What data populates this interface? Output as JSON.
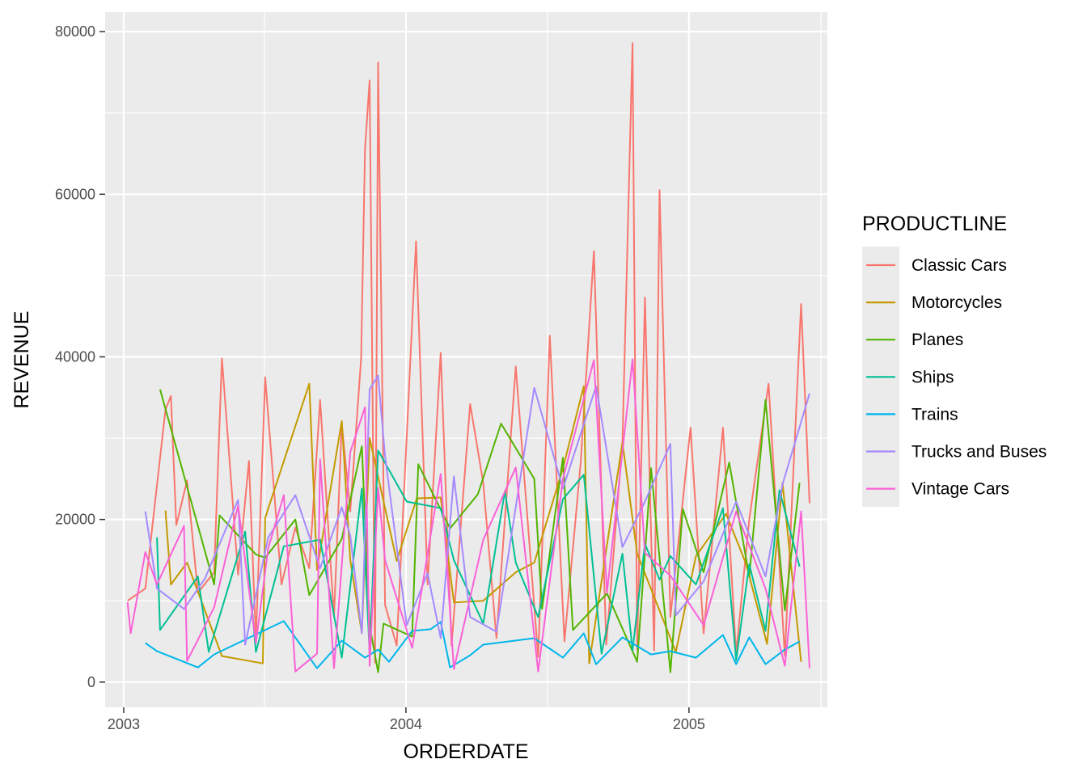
{
  "chart_data": {
    "type": "line",
    "xlabel": "ORDERDATE",
    "ylabel": "REVENUE",
    "x_ticks": [
      "2003",
      "2004",
      "2005"
    ],
    "y_ticks": [
      0,
      20000,
      40000,
      60000,
      80000
    ],
    "x_tick_labels": [
      "2003",
      "2004",
      "2005"
    ],
    "y_tick_labels": [
      "0",
      "20000",
      "40000",
      "60000",
      "80000"
    ],
    "xlim": [
      "2002-12-08",
      "2005-06-29"
    ],
    "ylim": [
      -3100,
      82400
    ],
    "grid": true,
    "legend": {
      "title": "PRODUCTLINE",
      "position": "right"
    },
    "series": [
      {
        "name": "Classic Cars",
        "color": "#F8766D",
        "points": [
          [
            "2003-01-06",
            10000
          ],
          [
            "2003-01-29",
            11500
          ],
          [
            "2003-02-24",
            33500
          ],
          [
            "2003-03-03",
            35200
          ],
          [
            "2003-03-10",
            19300
          ],
          [
            "2003-03-24",
            24800
          ],
          [
            "2003-04-07",
            11000
          ],
          [
            "2003-04-28",
            13500
          ],
          [
            "2003-05-08",
            39800
          ],
          [
            "2003-05-29",
            13200
          ],
          [
            "2003-06-12",
            27200
          ],
          [
            "2003-06-21",
            5200
          ],
          [
            "2003-07-03",
            37500
          ],
          [
            "2003-07-24",
            12000
          ],
          [
            "2003-08-11",
            19000
          ],
          [
            "2003-08-29",
            14000
          ],
          [
            "2003-09-12",
            34700
          ],
          [
            "2003-09-30",
            8000
          ],
          [
            "2003-10-10",
            31800
          ],
          [
            "2003-10-21",
            21000
          ],
          [
            "2003-11-04",
            39800
          ],
          [
            "2003-11-09",
            65500
          ],
          [
            "2003-11-15",
            74000
          ],
          [
            "2003-11-22",
            2400
          ],
          [
            "2003-11-26",
            76200
          ],
          [
            "2003-12-05",
            9500
          ],
          [
            "2003-12-20",
            4500
          ],
          [
            "2004-01-14",
            54200
          ],
          [
            "2004-01-29",
            12000
          ],
          [
            "2004-02-15",
            40500
          ],
          [
            "2004-02-29",
            4500
          ],
          [
            "2004-03-24",
            34200
          ],
          [
            "2004-04-10",
            24500
          ],
          [
            "2004-04-27",
            5400
          ],
          [
            "2004-05-22",
            38800
          ],
          [
            "2004-06-20",
            3100
          ],
          [
            "2004-07-05",
            42600
          ],
          [
            "2004-07-24",
            5000
          ],
          [
            "2004-08-14",
            27000
          ],
          [
            "2004-08-31",
            53000
          ],
          [
            "2004-09-16",
            4600
          ],
          [
            "2004-10-07",
            29500
          ],
          [
            "2004-10-20",
            78600
          ],
          [
            "2004-10-26",
            4000
          ],
          [
            "2004-11-05",
            47300
          ],
          [
            "2004-11-17",
            3900
          ],
          [
            "2004-11-24",
            60500
          ],
          [
            "2004-12-08",
            8000
          ],
          [
            "2005-01-03",
            31300
          ],
          [
            "2005-01-20",
            6000
          ],
          [
            "2005-02-14",
            31300
          ],
          [
            "2005-03-03",
            3500
          ],
          [
            "2005-03-20",
            20000
          ],
          [
            "2005-04-14",
            36700
          ],
          [
            "2005-05-05",
            3200
          ],
          [
            "2005-05-26",
            46500
          ],
          [
            "2005-06-06",
            22000
          ]
        ]
      },
      {
        "name": "Motorcycles",
        "color": "#C49A00",
        "points": [
          [
            "2003-02-24",
            21100
          ],
          [
            "2003-03-03",
            12000
          ],
          [
            "2003-03-24",
            14700
          ],
          [
            "2003-05-08",
            3200
          ],
          [
            "2003-06-30",
            2300
          ],
          [
            "2003-07-03",
            20200
          ],
          [
            "2003-08-29",
            36700
          ],
          [
            "2003-09-08",
            13800
          ],
          [
            "2003-10-10",
            32100
          ],
          [
            "2003-10-21",
            15000
          ],
          [
            "2003-11-05",
            6000
          ],
          [
            "2003-11-15",
            30000
          ],
          [
            "2003-12-20",
            14900
          ],
          [
            "2004-01-15",
            22600
          ],
          [
            "2004-02-15",
            22700
          ],
          [
            "2004-03-03",
            9800
          ],
          [
            "2004-04-10",
            10000
          ],
          [
            "2004-05-22",
            13500
          ],
          [
            "2004-06-15",
            14700
          ],
          [
            "2004-07-22",
            26300
          ],
          [
            "2004-08-18",
            36400
          ],
          [
            "2004-08-25",
            2300
          ],
          [
            "2004-10-07",
            29500
          ],
          [
            "2004-10-26",
            15800
          ],
          [
            "2004-12-15",
            3700
          ],
          [
            "2005-01-10",
            15500
          ],
          [
            "2005-02-18",
            20700
          ],
          [
            "2005-03-16",
            14500
          ],
          [
            "2005-04-12",
            4700
          ],
          [
            "2005-05-02",
            24500
          ],
          [
            "2005-05-26",
            2500
          ]
        ]
      },
      {
        "name": "Planes",
        "color": "#53B400",
        "points": [
          [
            "2003-02-17",
            36000
          ],
          [
            "2003-04-28",
            12000
          ],
          [
            "2003-05-05",
            20500
          ],
          [
            "2003-06-21",
            15700
          ],
          [
            "2003-07-03",
            15300
          ],
          [
            "2003-08-11",
            20000
          ],
          [
            "2003-08-29",
            10700
          ],
          [
            "2003-10-10",
            17600
          ],
          [
            "2003-11-05",
            29000
          ],
          [
            "2003-11-15",
            7000
          ],
          [
            "2003-11-26",
            1200
          ],
          [
            "2003-12-03",
            7200
          ],
          [
            "2004-01-09",
            5600
          ],
          [
            "2004-01-17",
            26800
          ],
          [
            "2004-02-27",
            18900
          ],
          [
            "2004-04-03",
            23100
          ],
          [
            "2004-05-03",
            31800
          ],
          [
            "2004-06-15",
            25000
          ],
          [
            "2004-06-25",
            9000
          ],
          [
            "2004-07-22",
            27600
          ],
          [
            "2004-08-04",
            6400
          ],
          [
            "2004-09-17",
            10900
          ],
          [
            "2004-10-26",
            2500
          ],
          [
            "2004-11-13",
            26300
          ],
          [
            "2004-12-08",
            1200
          ],
          [
            "2004-12-24",
            21300
          ],
          [
            "2005-01-20",
            13500
          ],
          [
            "2005-02-22",
            27000
          ],
          [
            "2005-03-20",
            13000
          ],
          [
            "2005-04-10",
            34700
          ],
          [
            "2005-05-05",
            8800
          ],
          [
            "2005-05-24",
            24500
          ]
        ]
      },
      {
        "name": "Ships",
        "color": "#00C094",
        "points": [
          [
            "2003-02-13",
            17800
          ],
          [
            "2003-02-17",
            6400
          ],
          [
            "2003-04-07",
            13000
          ],
          [
            "2003-04-21",
            3700
          ],
          [
            "2003-06-07",
            18500
          ],
          [
            "2003-06-21",
            3700
          ],
          [
            "2003-07-27",
            16700
          ],
          [
            "2003-09-12",
            17500
          ],
          [
            "2003-10-10",
            3000
          ],
          [
            "2003-11-05",
            23800
          ],
          [
            "2003-11-15",
            3500
          ],
          [
            "2003-11-26",
            28500
          ],
          [
            "2004-01-02",
            22200
          ],
          [
            "2004-02-15",
            21400
          ],
          [
            "2004-03-03",
            15000
          ],
          [
            "2004-04-10",
            7200
          ],
          [
            "2004-05-08",
            23500
          ],
          [
            "2004-05-22",
            14700
          ],
          [
            "2004-06-20",
            8000
          ],
          [
            "2004-07-22",
            22500
          ],
          [
            "2004-08-18",
            25500
          ],
          [
            "2004-09-10",
            3500
          ],
          [
            "2004-10-07",
            15800
          ],
          [
            "2004-10-20",
            3900
          ],
          [
            "2004-11-05",
            17000
          ],
          [
            "2004-11-24",
            12600
          ],
          [
            "2004-12-08",
            15500
          ],
          [
            "2005-01-10",
            12000
          ],
          [
            "2005-02-14",
            21400
          ],
          [
            "2005-03-03",
            2700
          ],
          [
            "2005-03-20",
            14500
          ],
          [
            "2005-04-10",
            6300
          ],
          [
            "2005-04-28",
            23600
          ],
          [
            "2005-05-24",
            14200
          ]
        ]
      },
      {
        "name": "Trains",
        "color": "#00B6EB",
        "points": [
          [
            "2003-01-29",
            4800
          ],
          [
            "2003-02-13",
            3800
          ],
          [
            "2003-04-07",
            1800
          ],
          [
            "2003-04-28",
            3400
          ],
          [
            "2003-07-27",
            7500
          ],
          [
            "2003-09-08",
            1700
          ],
          [
            "2003-10-10",
            5100
          ],
          [
            "2003-11-09",
            3000
          ],
          [
            "2003-11-26",
            4000
          ],
          [
            "2003-12-10",
            2500
          ],
          [
            "2004-01-09",
            6300
          ],
          [
            "2004-02-02",
            6500
          ],
          [
            "2004-02-15",
            7400
          ],
          [
            "2004-02-27",
            1800
          ],
          [
            "2004-03-24",
            3300
          ],
          [
            "2004-04-10",
            4600
          ],
          [
            "2004-06-15",
            5400
          ],
          [
            "2004-07-22",
            3000
          ],
          [
            "2004-08-18",
            6000
          ],
          [
            "2004-09-03",
            2200
          ],
          [
            "2004-10-07",
            5500
          ],
          [
            "2004-11-13",
            3400
          ],
          [
            "2004-12-08",
            3800
          ],
          [
            "2005-01-10",
            3000
          ],
          [
            "2005-02-14",
            5800
          ],
          [
            "2005-03-03",
            2200
          ],
          [
            "2005-03-20",
            5500
          ],
          [
            "2005-04-10",
            2200
          ],
          [
            "2005-05-05",
            4000
          ],
          [
            "2005-05-24",
            5000
          ]
        ]
      },
      {
        "name": "Trucks and Buses",
        "color": "#A58AFF",
        "points": [
          [
            "2003-01-29",
            21000
          ],
          [
            "2003-02-13",
            11500
          ],
          [
            "2003-03-20",
            9000
          ],
          [
            "2003-04-16",
            12700
          ],
          [
            "2003-05-29",
            22400
          ],
          [
            "2003-06-07",
            4600
          ],
          [
            "2003-07-07",
            17800
          ],
          [
            "2003-08-11",
            23000
          ],
          [
            "2003-09-12",
            14000
          ],
          [
            "2003-10-10",
            21500
          ],
          [
            "2003-10-21",
            18000
          ],
          [
            "2003-11-05",
            6000
          ],
          [
            "2003-11-15",
            36000
          ],
          [
            "2003-11-26",
            37700
          ],
          [
            "2003-12-05",
            27800
          ],
          [
            "2004-01-02",
            7000
          ],
          [
            "2004-01-29",
            13400
          ],
          [
            "2004-02-15",
            5400
          ],
          [
            "2004-03-03",
            25300
          ],
          [
            "2004-03-24",
            8000
          ],
          [
            "2004-04-27",
            6200
          ],
          [
            "2004-06-15",
            36200
          ],
          [
            "2004-07-22",
            23800
          ],
          [
            "2004-09-03",
            36400
          ],
          [
            "2004-10-07",
            16600
          ],
          [
            "2004-11-05",
            22200
          ],
          [
            "2004-12-08",
            29300
          ],
          [
            "2004-12-15",
            8200
          ],
          [
            "2005-01-20",
            12400
          ],
          [
            "2005-03-03",
            22200
          ],
          [
            "2005-04-10",
            13000
          ],
          [
            "2005-05-02",
            24300
          ],
          [
            "2005-06-06",
            35500
          ]
        ]
      },
      {
        "name": "Vintage Cars",
        "color": "#FB61D7",
        "points": [
          [
            "2003-01-06",
            9800
          ],
          [
            "2003-01-10",
            6000
          ],
          [
            "2003-01-29",
            16000
          ],
          [
            "2003-02-13",
            12000
          ],
          [
            "2003-03-20",
            19200
          ],
          [
            "2003-03-24",
            2600
          ],
          [
            "2003-04-07",
            5200
          ],
          [
            "2003-04-28",
            9200
          ],
          [
            "2003-05-29",
            21700
          ],
          [
            "2003-06-21",
            4800
          ],
          [
            "2003-07-07",
            16500
          ],
          [
            "2003-07-27",
            23000
          ],
          [
            "2003-08-11",
            1300
          ],
          [
            "2003-09-08",
            3500
          ],
          [
            "2003-09-12",
            27400
          ],
          [
            "2003-09-30",
            1700
          ],
          [
            "2003-10-21",
            28300
          ],
          [
            "2003-11-09",
            33800
          ],
          [
            "2003-11-15",
            2000
          ],
          [
            "2003-11-26",
            23900
          ],
          [
            "2003-12-05",
            15000
          ],
          [
            "2004-01-09",
            4200
          ],
          [
            "2004-02-15",
            25600
          ],
          [
            "2004-03-03",
            1600
          ],
          [
            "2004-04-10",
            17500
          ],
          [
            "2004-05-22",
            26400
          ],
          [
            "2004-06-20",
            1300
          ],
          [
            "2004-07-22",
            25000
          ],
          [
            "2004-08-31",
            39600
          ],
          [
            "2004-09-17",
            11000
          ],
          [
            "2004-10-20",
            39700
          ],
          [
            "2004-11-05",
            15900
          ],
          [
            "2004-12-08",
            13100
          ],
          [
            "2005-01-20",
            7000
          ],
          [
            "2005-03-03",
            21000
          ],
          [
            "2005-04-10",
            11500
          ],
          [
            "2005-05-05",
            2000
          ],
          [
            "2005-05-26",
            21000
          ],
          [
            "2005-06-06",
            1700
          ]
        ]
      }
    ]
  }
}
